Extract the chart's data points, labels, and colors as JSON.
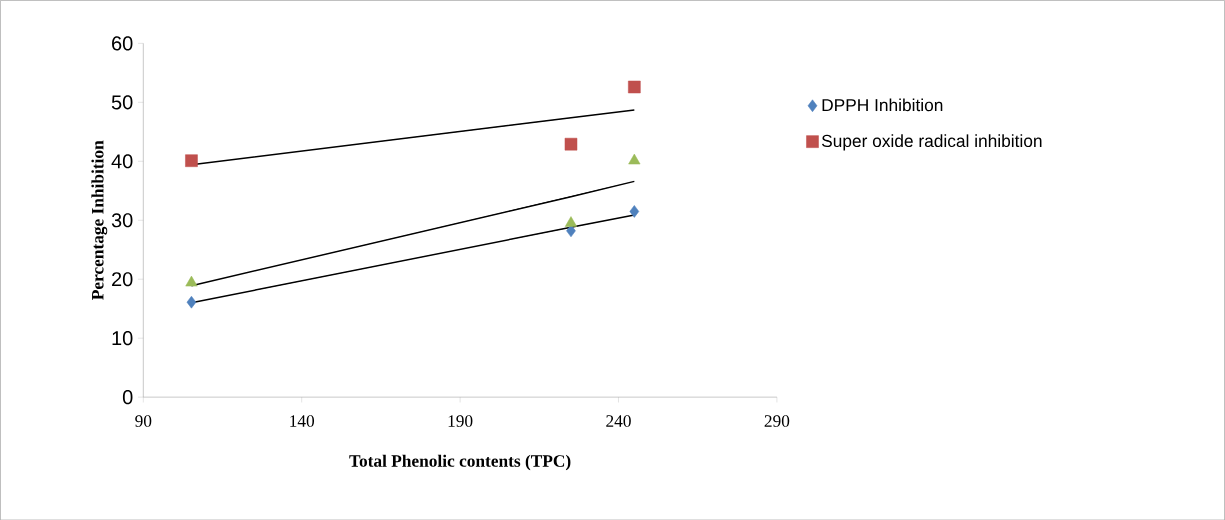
{
  "chart_data": {
    "type": "scatter",
    "xlabel": "Total Phenolic contents (TPC)",
    "ylabel": "Percentage Inhibition",
    "x": [
      105.2,
      225,
      245
    ],
    "series": [
      {
        "name": "DPPH Inhibition",
        "color": "#4f81bd",
        "marker": "diamond",
        "values": [
          16.1,
          28.2,
          31.5
        ]
      },
      {
        "name": "Super oxide radical inhibition",
        "color": "#c0504d",
        "marker": "square",
        "values": [
          40.1,
          42.9,
          52.6
        ]
      },
      {
        "color": "#9bbb59",
        "marker": "triangle",
        "values": [
          19.4,
          29.5,
          40.1
        ]
      },
      {
        "type": "line",
        "color": "#000000",
        "marker": "none",
        "values": [
          16.0,
          28.8,
          30.9
        ]
      },
      {
        "type": "line",
        "color": "#000000",
        "marker": "none",
        "values": [
          18.9,
          34.0,
          36.6
        ]
      },
      {
        "type": "line",
        "color": "#000000",
        "marker": "none",
        "values": [
          39.4,
          47.4,
          48.7
        ]
      }
    ],
    "xlim": [
      90,
      290
    ],
    "xticks": [
      90,
      140,
      190,
      240,
      290
    ],
    "ylim": [
      0,
      60
    ],
    "yticks": [
      0,
      10,
      20,
      30,
      40,
      50,
      60
    ],
    "grid": false,
    "legend": "right"
  }
}
